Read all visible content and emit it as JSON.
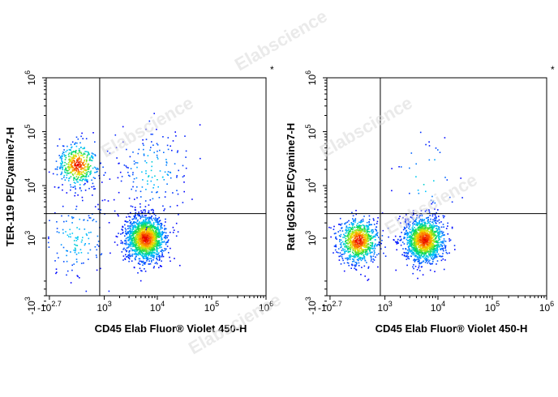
{
  "watermark": "Elabscience",
  "chart_data": [
    {
      "type": "scatter",
      "subtype": "flow-cytometry-density-dot-plot",
      "xlabel": "CD45 Elab Fluor® Violet 450-H",
      "ylabel": "TER-119 PE/Cyanine7-H",
      "x_scale": "biexponential",
      "y_scale": "biexponential",
      "x_ticks": [
        {
          "base": "-10",
          "exp": "2.7"
        },
        {
          "base": "10",
          "exp": "3"
        },
        {
          "base": "10",
          "exp": "4"
        },
        {
          "base": "10",
          "exp": "5"
        },
        {
          "base": "10",
          "exp": "6"
        }
      ],
      "y_ticks": [
        {
          "base": "-10",
          "exp": "3"
        },
        {
          "base": "10",
          "exp": "3"
        },
        {
          "base": "10",
          "exp": "4"
        },
        {
          "base": "10",
          "exp": "5"
        },
        {
          "base": "10",
          "exp": "6"
        }
      ],
      "quadrant_gate": {
        "x": 800,
        "y": 3000
      },
      "annotation": "*",
      "populations": [
        {
          "x_center": 150,
          "y_center": 25000,
          "density": "high",
          "count": 450
        },
        {
          "x_center": 6000,
          "y_center": 1000,
          "density": "high",
          "count": 1700
        },
        {
          "x_center": 150,
          "y_center": 1000,
          "density": "low",
          "count": 160
        },
        {
          "x_center": 8000,
          "y_center": 18000,
          "density": "low",
          "count": 170
        }
      ]
    },
    {
      "type": "scatter",
      "subtype": "flow-cytometry-density-dot-plot",
      "xlabel": "CD45 Elab Fluor® Violet 450-H",
      "ylabel": "Rat IgG2b PE/Cyanine7-H",
      "x_scale": "biexponential",
      "y_scale": "biexponential",
      "x_ticks": [
        {
          "base": "-10",
          "exp": "2.7"
        },
        {
          "base": "10",
          "exp": "3"
        },
        {
          "base": "10",
          "exp": "4"
        },
        {
          "base": "10",
          "exp": "5"
        },
        {
          "base": "10",
          "exp": "6"
        }
      ],
      "y_ticks": [
        {
          "base": "-10",
          "exp": "3"
        },
        {
          "base": "10",
          "exp": "3"
        },
        {
          "base": "10",
          "exp": "4"
        },
        {
          "base": "10",
          "exp": "5"
        },
        {
          "base": "10",
          "exp": "6"
        }
      ],
      "quadrant_gate": {
        "x": 800,
        "y": 3000
      },
      "annotation": "*",
      "populations": [
        {
          "x_center": 150,
          "y_center": 900,
          "density": "high",
          "count": 900
        },
        {
          "x_center": 5500,
          "y_center": 950,
          "density": "high",
          "count": 1500
        },
        {
          "x_center": 6000,
          "y_center": 15000,
          "density": "low",
          "count": 40
        }
      ]
    }
  ]
}
